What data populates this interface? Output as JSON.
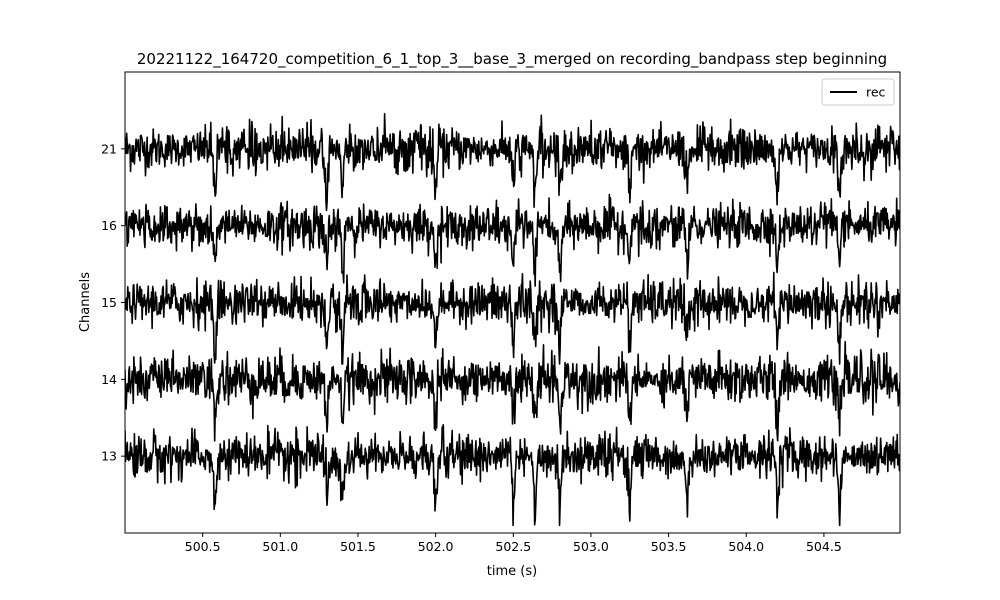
{
  "chart_data": {
    "type": "line",
    "title": "20221122_164720_competition_6_1_top_3__base_3_merged on recording_bandpass step beginning",
    "xlabel": "time (s)",
    "ylabel": "Channels",
    "xlim": [
      500.0,
      504.99
    ],
    "x_ticks": [
      500.5,
      501.0,
      501.5,
      502.0,
      502.5,
      503.0,
      503.5,
      504.0,
      504.5
    ],
    "x_tick_labels": [
      "500.5",
      "501.0",
      "501.5",
      "502.0",
      "502.5",
      "503.0",
      "503.5",
      "504.0",
      "504.5"
    ],
    "channels": [
      "13",
      "14",
      "15",
      "16",
      "21"
    ],
    "grid": false,
    "legend": {
      "position": "top-right",
      "entries": [
        "rec"
      ]
    },
    "series": [
      {
        "name": "rec",
        "color": "#000000",
        "traces": [
          {
            "channel": "21",
            "noise_std": 0.5,
            "peak_range": [
              -1.6,
              1.4
            ]
          },
          {
            "channel": "16",
            "noise_std": 0.5,
            "peak_range": [
              -1.6,
              1.4
            ]
          },
          {
            "channel": "15",
            "noise_std": 0.5,
            "peak_range": [
              -1.6,
              1.4
            ]
          },
          {
            "channel": "14",
            "noise_std": 0.55,
            "peak_range": [
              -1.6,
              1.4
            ]
          },
          {
            "channel": "13",
            "noise_std": 0.5,
            "peak_range": [
              -1.8,
              1.4
            ]
          }
        ],
        "shared_events_s": [
          500.58,
          501.3,
          501.4,
          502.0,
          502.5,
          502.64,
          502.8,
          503.25,
          503.62,
          504.2,
          504.6
        ]
      }
    ]
  }
}
